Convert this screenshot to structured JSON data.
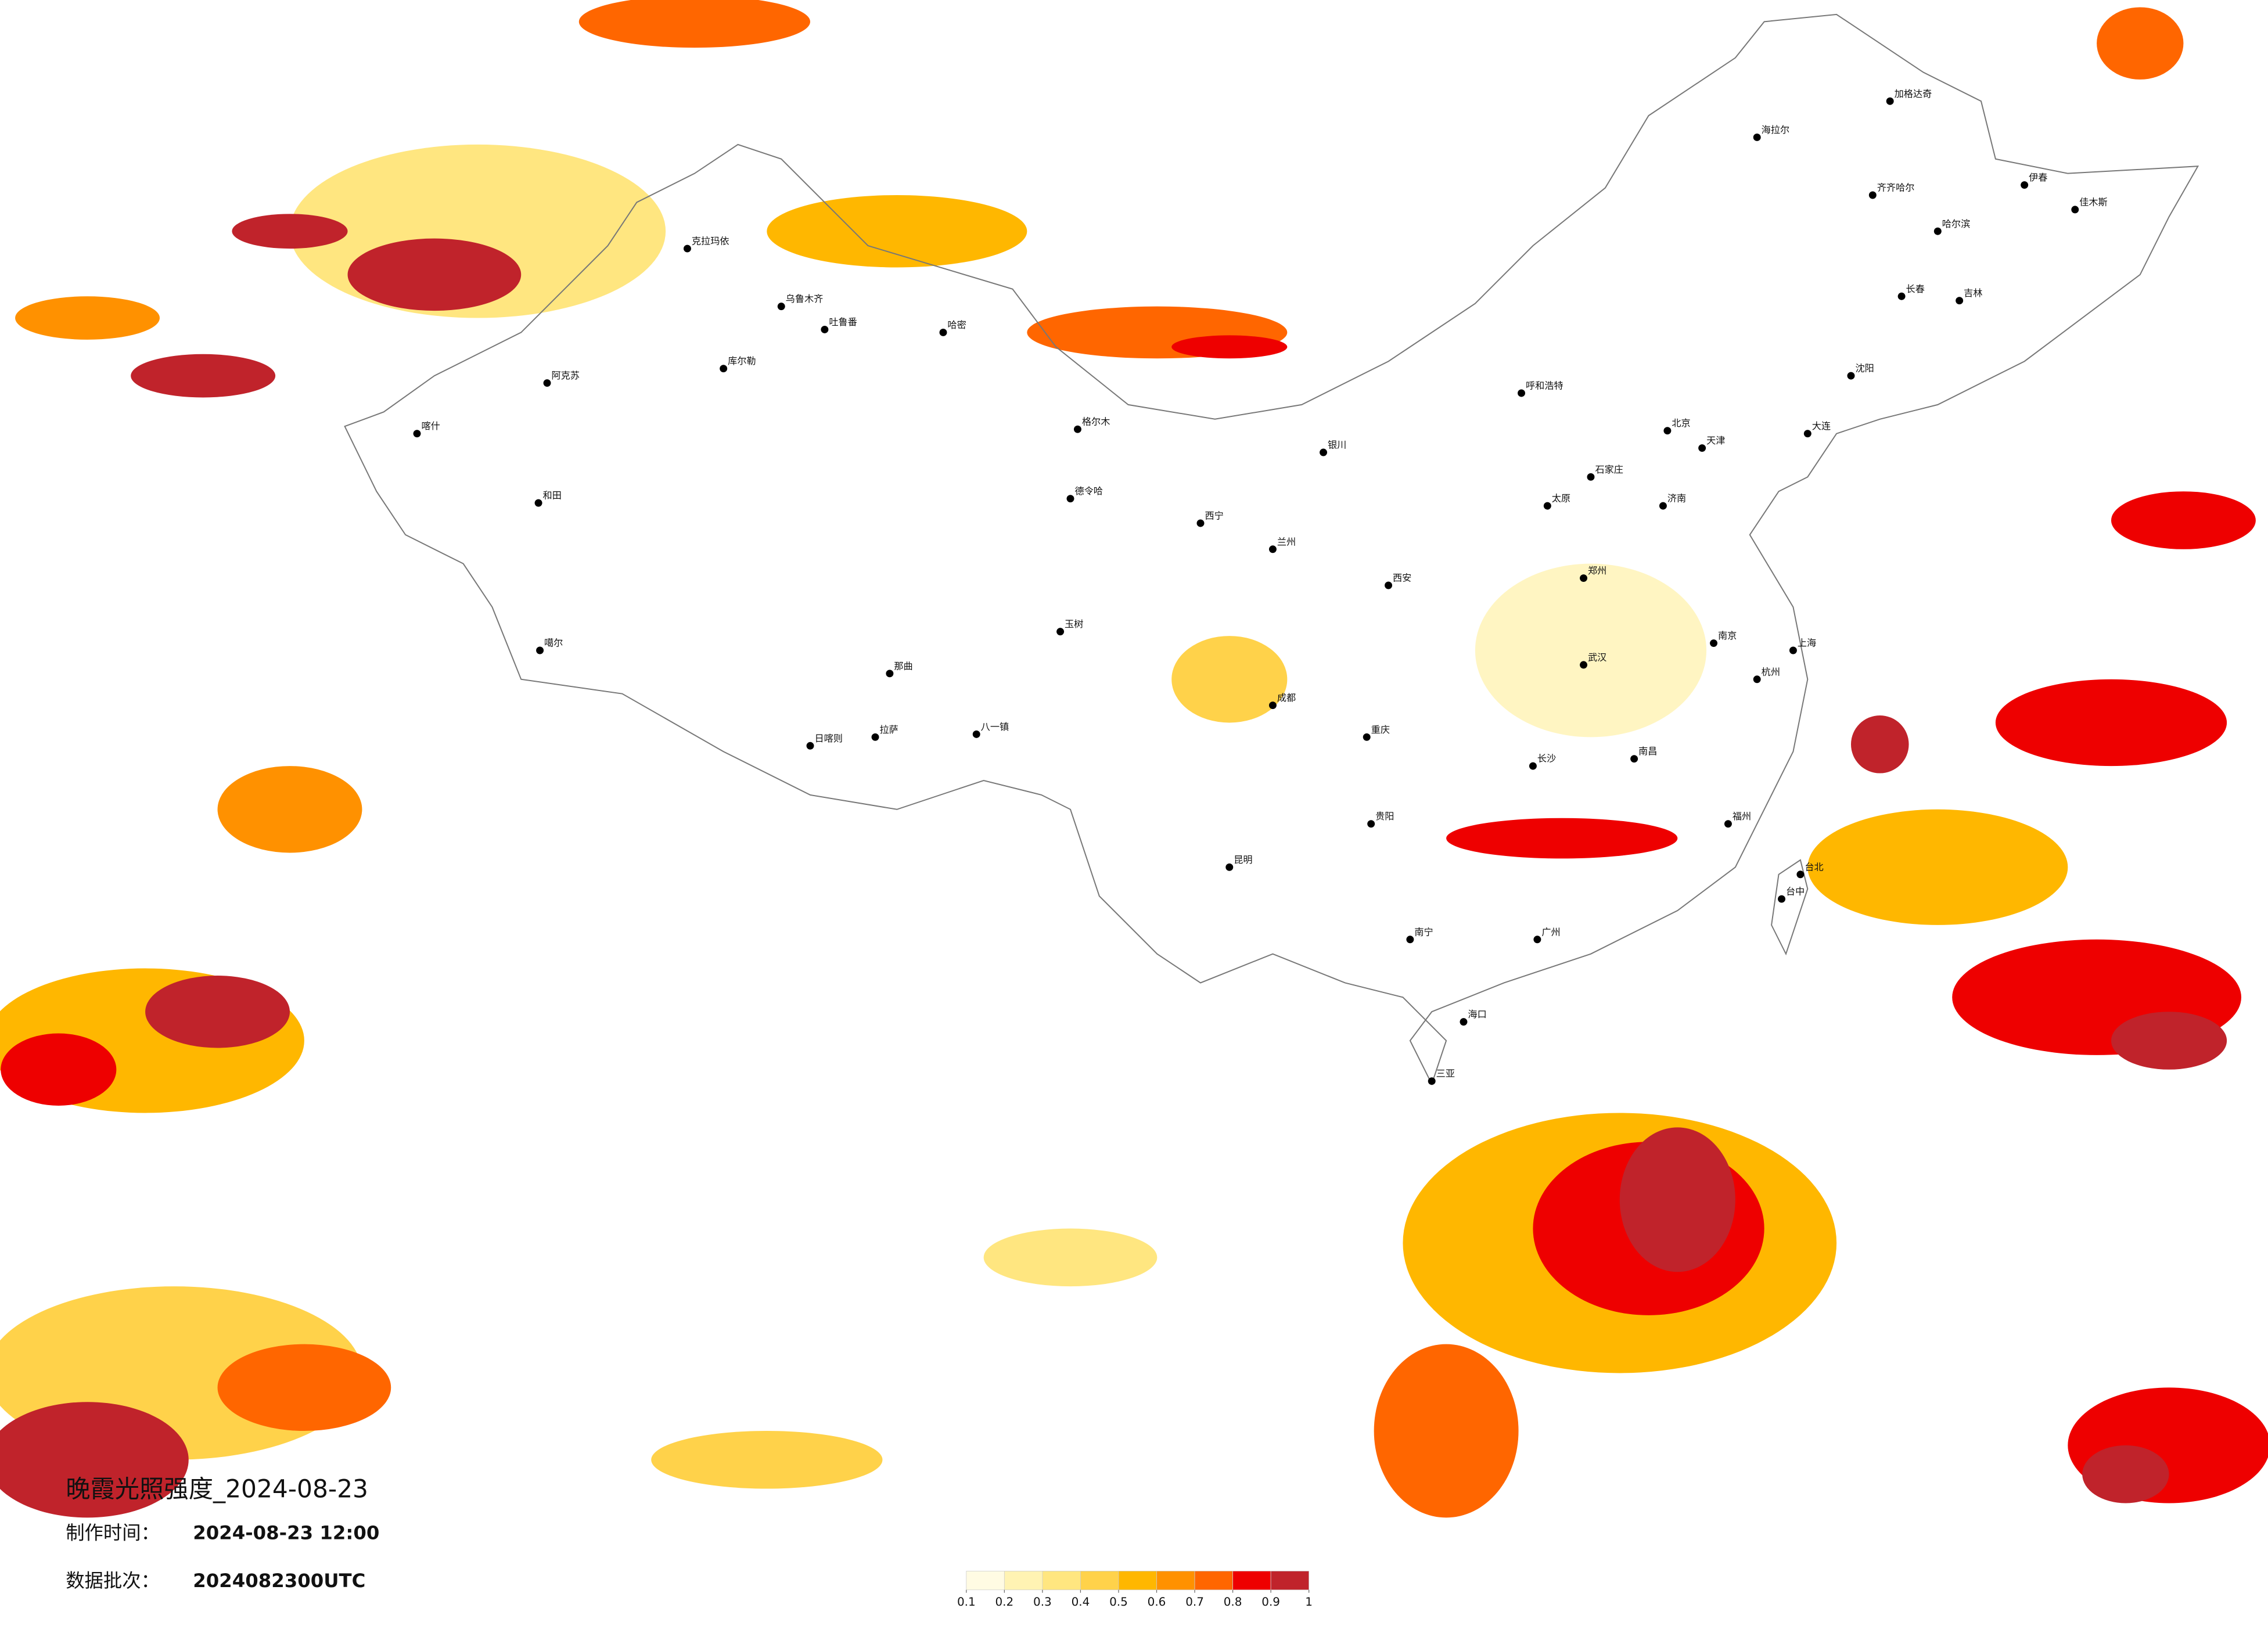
{
  "title": "晚霞光照强度_2024-08-23",
  "info": [
    {
      "label": "制作时间：",
      "value": "2024-08-23 12:00"
    },
    {
      "label": "数据批次：",
      "value": "2024082300UTC"
    }
  ],
  "legend": {
    "colors": [
      "#fffbe3",
      "#fff3b3",
      "#ffe680",
      "#ffd24a",
      "#ffb700",
      "#ff9100",
      "#ff6600",
      "#ee0000",
      "#c0232b"
    ],
    "ticks": [
      0.1,
      0.2,
      0.3,
      0.4,
      0.5,
      0.6,
      0.7,
      0.8,
      0.9,
      1
    ]
  },
  "cities": [
    "克拉玛依",
    "乌鲁木齐",
    "吐鲁番",
    "哈密",
    "库尔勒",
    "阿克苏",
    "喀什",
    "和田",
    "噶尔",
    "日喀则",
    "拉萨",
    "八一镇",
    "那曲",
    "玉树",
    "格尔木",
    "德令哈",
    "西宁",
    "兰州",
    "银川",
    "呼和浩特",
    "北京",
    "天津",
    "石家庄",
    "太原",
    "济南",
    "郑州",
    "西安",
    "成都",
    "重庆",
    "贵阳",
    "昆明",
    "南宁",
    "广州",
    "长沙",
    "武汉",
    "南昌",
    "福州",
    "杭州",
    "上海",
    "南京",
    "海口",
    "三亚",
    "台北",
    "台中",
    "沈阳",
    "长春",
    "吉林",
    "哈尔滨",
    "齐齐哈尔",
    "海拉尔",
    "加格达奇",
    "佳木斯",
    "大连",
    "伊春"
  ]
}
